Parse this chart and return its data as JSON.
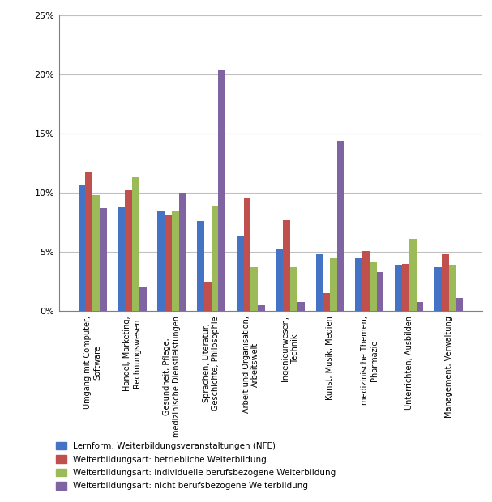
{
  "categories": [
    "Umgang mit Computer,\nSoftware",
    "Handel, Marketing,\nRechnungswesen",
    "Gesundheit, Pflege,\nmedizinische Dienstleistungen",
    "Sprachen, Literatur,\nGeschichte, Philosophie",
    "Arbeit und Organisation,\nArbeitswelt",
    "Ingenieurwesen,\nTechnik",
    "Kunst, Musik, Medien",
    "medizinische Themen,\nPharmazie",
    "Unterrichten, Ausbilden",
    "Management, Verwaltung"
  ],
  "series": {
    "Lernform: Weiterbildungsveranstaltungen (NFE)": [
      10.6,
      8.8,
      8.5,
      7.6,
      6.4,
      5.3,
      4.8,
      4.5,
      3.9,
      3.7
    ],
    "Weiterbildungsart: betriebliche Weiterbildung": [
      11.8,
      10.2,
      8.1,
      2.5,
      9.6,
      7.7,
      1.5,
      5.1,
      4.0,
      4.8
    ],
    "Weiterbildungsart: individuelle berufsbezogene Weiterbildung": [
      9.8,
      11.3,
      8.4,
      8.9,
      3.7,
      3.7,
      4.5,
      4.1,
      6.1,
      3.9
    ],
    "Weiterbildungsart: nicht berufsbezogene Weiterbildung": [
      8.7,
      2.0,
      10.0,
      20.3,
      0.5,
      0.8,
      14.4,
      3.3,
      0.8,
      1.1
    ]
  },
  "colors": [
    "#4472C4",
    "#C0504D",
    "#9BBB59",
    "#8064A2"
  ],
  "ylim": [
    0,
    25
  ],
  "yticks": [
    0,
    5,
    10,
    15,
    20,
    25
  ],
  "yticklabels": [
    "0%",
    "5%",
    "10%",
    "15%",
    "20%",
    "25%"
  ],
  "background_color": "#FFFFFF",
  "plot_background_color": "#FFFFFF",
  "grid_color": "#C0C0C0",
  "bar_width": 0.18,
  "figsize": [
    6.07,
    6.2
  ],
  "dpi": 100
}
